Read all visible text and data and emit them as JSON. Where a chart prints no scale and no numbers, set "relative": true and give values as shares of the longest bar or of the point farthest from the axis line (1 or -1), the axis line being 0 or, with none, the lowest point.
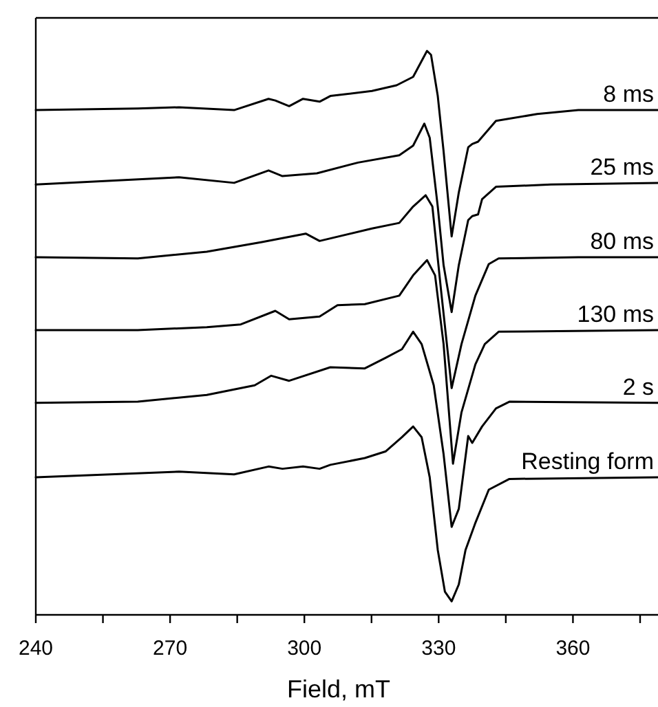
{
  "chart_data": {
    "type": "line",
    "xlabel": "Field, mT",
    "relative": true,
    "xlim": [
      240,
      379
    ],
    "xticks": [
      240,
      {
        "value": 255,
        "label": null
      },
      270,
      {
        "value": 285,
        "label": null
      },
      300,
      {
        "value": 315,
        "label": null
      },
      330,
      {
        "value": 345,
        "label": null
      },
      360,
      {
        "value": 375,
        "label": null
      }
    ],
    "series": [
      {
        "name": "8 ms",
        "color": "#000000",
        "x": [
          240,
          262.8,
          272,
          284.3,
          292,
          293.5,
          296.6,
          299.7,
          303.4,
          305.8,
          315.1,
          320.6,
          324.3,
          327.4,
          328.3,
          329.8,
          331.1,
          332.9,
          334.5,
          336.6,
          337.5,
          338.8,
          342.8,
          352,
          361.2,
          379
        ],
        "values": [
          0.895,
          0.898,
          0.9,
          0.895,
          0.915,
          0.912,
          0.902,
          0.915,
          0.91,
          0.92,
          0.929,
          0.939,
          0.954,
          1,
          0.993,
          0.92,
          0.822,
          0.671,
          0.749,
          0.829,
          0.835,
          0.839,
          0.876,
          0.888,
          0.895,
          0.895
        ]
      },
      {
        "name": "25 ms",
        "color": "#000000",
        "x": [
          240,
          272,
          284.3,
          292,
          295.1,
          302.8,
          312,
          321.2,
          324.3,
          326.8,
          328,
          329.8,
          331.1,
          332.9,
          334.5,
          336.6,
          337.5,
          338.8,
          339.7,
          342.8,
          355.1,
          379
        ],
        "values": [
          0.763,
          0.776,
          0.766,
          0.788,
          0.778,
          0.783,
          0.802,
          0.815,
          0.832,
          0.871,
          0.846,
          0.724,
          0.62,
          0.537,
          0.62,
          0.7,
          0.707,
          0.71,
          0.737,
          0.759,
          0.763,
          0.766
        ]
      },
      {
        "name": "80 ms",
        "color": "#000000",
        "x": [
          240,
          262.8,
          278.2,
          290.5,
          300.3,
          303.4,
          315.1,
          321.2,
          324.3,
          327.1,
          328.6,
          330.5,
          332.9,
          335.1,
          338.2,
          341.2,
          343.4,
          361.2,
          379
        ],
        "values": [
          0.634,
          0.632,
          0.644,
          0.661,
          0.676,
          0.663,
          0.685,
          0.695,
          0.724,
          0.744,
          0.724,
          0.578,
          0.402,
          0.48,
          0.566,
          0.622,
          0.632,
          0.634,
          0.634
        ]
      },
      {
        "name": "130 ms",
        "color": "#000000",
        "x": [
          240,
          262.8,
          278.2,
          285.8,
          293.5,
          296.6,
          303.4,
          307.4,
          313.5,
          321.2,
          324.3,
          327.4,
          329.2,
          331.1,
          333.2,
          335.1,
          338.2,
          340.3,
          343.4,
          379
        ],
        "values": [
          0.505,
          0.505,
          0.51,
          0.515,
          0.539,
          0.524,
          0.529,
          0.549,
          0.551,
          0.566,
          0.602,
          0.629,
          0.602,
          0.48,
          0.268,
          0.359,
          0.444,
          0.48,
          0.502,
          0.505
        ]
      },
      {
        "name": "2 s",
        "color": "#000000",
        "x": [
          240,
          262.8,
          278.2,
          288.9,
          292.6,
          296.6,
          305.8,
          313.5,
          318.2,
          321.8,
          324.3,
          326.2,
          328.9,
          331.1,
          332.9,
          334.5,
          336.6,
          337.5,
          339.7,
          342.8,
          345.8,
          379
        ],
        "values": [
          0.376,
          0.378,
          0.39,
          0.407,
          0.424,
          0.415,
          0.439,
          0.437,
          0.456,
          0.471,
          0.502,
          0.48,
          0.407,
          0.285,
          0.156,
          0.188,
          0.317,
          0.305,
          0.334,
          0.366,
          0.378,
          0.376
        ]
      },
      {
        "name": "Resting form",
        "color": "#000000",
        "x": [
          240,
          272,
          284.3,
          292,
          295.1,
          299.7,
          303.4,
          305.8,
          313.5,
          318.2,
          321.8,
          324.3,
          326.2,
          328,
          329.8,
          331.4,
          332.9,
          334.5,
          336,
          338.2,
          341.2,
          345.8,
          379
        ],
        "values": [
          0.244,
          0.254,
          0.249,
          0.263,
          0.259,
          0.263,
          0.259,
          0.266,
          0.278,
          0.29,
          0.315,
          0.334,
          0.315,
          0.244,
          0.115,
          0.041,
          0.024,
          0.054,
          0.115,
          0.163,
          0.222,
          0.241,
          0.244
        ]
      }
    ]
  }
}
